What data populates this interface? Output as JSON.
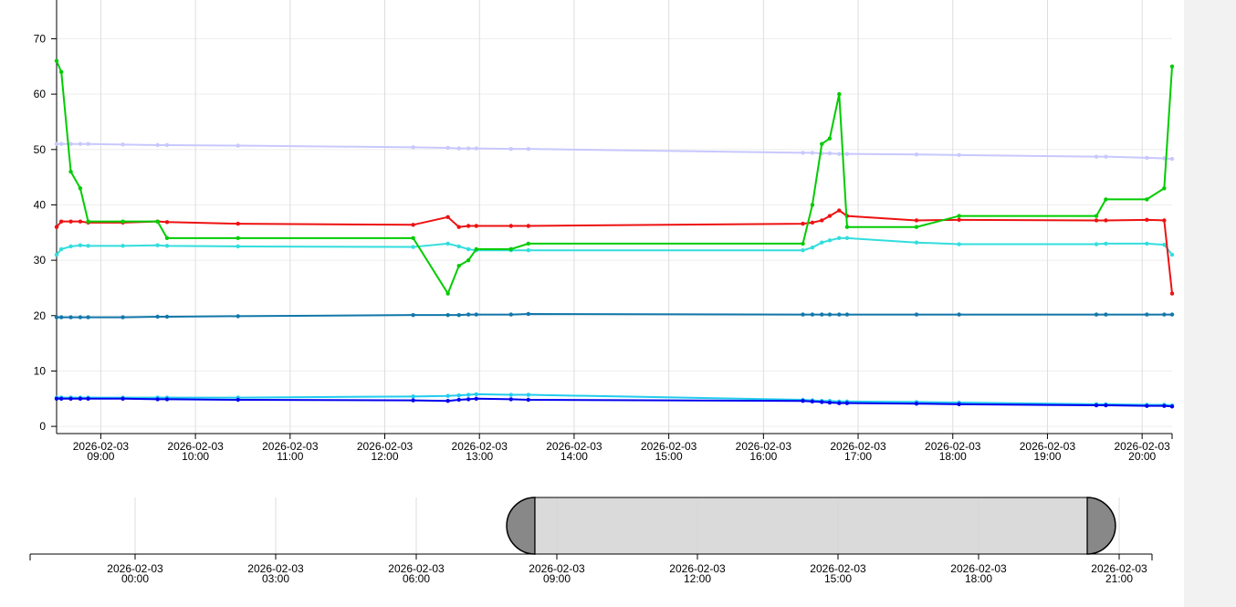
{
  "chart_data": {
    "type": "line",
    "x": [
      "2026-02-03 08:32",
      "2026-02-03 08:35",
      "2026-02-03 08:41",
      "2026-02-03 08:47",
      "2026-02-03 08:52",
      "2026-02-03 09:14",
      "2026-02-03 09:36",
      "2026-02-03 09:42",
      "2026-02-03 10:27",
      "2026-02-03 12:18",
      "2026-02-03 12:40",
      "2026-02-03 12:47",
      "2026-02-03 12:53",
      "2026-02-03 12:58",
      "2026-02-03 13:20",
      "2026-02-03 13:31",
      "2026-02-03 16:25",
      "2026-02-03 16:31",
      "2026-02-03 16:37",
      "2026-02-03 16:42",
      "2026-02-03 16:48",
      "2026-02-03 16:53",
      "2026-02-03 17:37",
      "2026-02-03 18:04",
      "2026-02-03 19:31",
      "2026-02-03 19:37",
      "2026-02-03 20:03",
      "2026-02-03 20:14",
      "2026-02-03 20:19"
    ],
    "series": [
      {
        "color": "#c8c8ff",
        "values": [
          51,
          51,
          51,
          51,
          51,
          50.9,
          50.8,
          50.8,
          50.7,
          50.4,
          50.3,
          50.2,
          50.2,
          50.2,
          50.1,
          50.1,
          49.4,
          49.4,
          49.3,
          49.3,
          49.2,
          49.2,
          49.1,
          49,
          48.7,
          48.7,
          48.5,
          48.4,
          48.3
        ]
      },
      {
        "color": "#1177aa",
        "values": [
          19.7,
          19.7,
          19.7,
          19.7,
          19.7,
          19.7,
          19.8,
          19.8,
          19.9,
          20.1,
          20.1,
          20.1,
          20.2,
          20.2,
          20.2,
          20.3,
          20.2,
          20.2,
          20.2,
          20.2,
          20.2,
          20.2,
          20.2,
          20.2,
          20.2,
          20.2,
          20.2,
          20.2,
          20.2
        ]
      },
      {
        "color": "#22ccee",
        "values": [
          5.2,
          5.2,
          5.2,
          5.2,
          5.2,
          5.2,
          5.2,
          5.2,
          5.2,
          5.4,
          5.5,
          5.6,
          5.7,
          5.8,
          5.7,
          5.7,
          4.8,
          4.7,
          4.6,
          4.6,
          4.5,
          4.5,
          4.4,
          4.3,
          4,
          4,
          3.9,
          3.9,
          3.8
        ]
      },
      {
        "color": "#0000ee",
        "values": [
          5,
          5,
          5,
          5,
          5,
          5,
          4.9,
          4.9,
          4.8,
          4.7,
          4.6,
          4.8,
          4.9,
          5,
          4.9,
          4.8,
          4.6,
          4.5,
          4.4,
          4.3,
          4.2,
          4.2,
          4.1,
          4,
          3.8,
          3.8,
          3.7,
          3.7,
          3.6
        ]
      },
      {
        "color": "#33dddd",
        "values": [
          31,
          32,
          32.5,
          32.7,
          32.6,
          32.6,
          32.7,
          32.6,
          32.5,
          32.4,
          33,
          32.5,
          32,
          31.8,
          31.8,
          31.8,
          31.8,
          32.3,
          33.2,
          33.6,
          34,
          34,
          33.2,
          32.9,
          32.9,
          33,
          33,
          32.8,
          31
        ]
      },
      {
        "color": "#ee1111",
        "values": [
          36,
          37,
          37,
          37,
          36.8,
          36.8,
          37,
          36.9,
          36.6,
          36.4,
          37.8,
          36,
          36.2,
          36.2,
          36.2,
          36.2,
          36.6,
          36.8,
          37.2,
          38,
          39,
          38,
          37.2,
          37.3,
          37.2,
          37.2,
          37.3,
          37.2,
          24
        ]
      },
      {
        "color": "#00cc00",
        "values": [
          66,
          64,
          46,
          43,
          37,
          37,
          37,
          34,
          34,
          34,
          24,
          29,
          30,
          32,
          32,
          33,
          33,
          40,
          51,
          52,
          60,
          36,
          36,
          38,
          38,
          41,
          41,
          43,
          65
        ]
      }
    ],
    "xlim": [
      "2026-02-03 08:32",
      "2026-02-03 20:19"
    ],
    "xticks": [
      {
        "value": "2026-02-03 09:00",
        "label": [
          "2026-02-03",
          "09:00"
        ]
      },
      {
        "value": "2026-02-03 10:00",
        "label": [
          "2026-02-03",
          "10:00"
        ]
      },
      {
        "value": "2026-02-03 11:00",
        "label": [
          "2026-02-03",
          "11:00"
        ]
      },
      {
        "value": "2026-02-03 12:00",
        "label": [
          "2026-02-03",
          "12:00"
        ]
      },
      {
        "value": "2026-02-03 13:00",
        "label": [
          "2026-02-03",
          "13:00"
        ]
      },
      {
        "value": "2026-02-03 14:00",
        "label": [
          "2026-02-03",
          "14:00"
        ]
      },
      {
        "value": "2026-02-03 15:00",
        "label": [
          "2026-02-03",
          "15:00"
        ]
      },
      {
        "value": "2026-02-03 16:00",
        "label": [
          "2026-02-03",
          "16:00"
        ]
      },
      {
        "value": "2026-02-03 17:00",
        "label": [
          "2026-02-03",
          "17:00"
        ]
      },
      {
        "value": "2026-02-03 18:00",
        "label": [
          "2026-02-03",
          "18:00"
        ]
      },
      {
        "value": "2026-02-03 19:00",
        "label": [
          "2026-02-03",
          "19:00"
        ]
      },
      {
        "value": "2026-02-03 20:00",
        "label": [
          "2026-02-03",
          "20:00"
        ]
      }
    ],
    "ylim": [
      -1.3,
      77
    ],
    "yticks": [
      0,
      10,
      20,
      30,
      40,
      50,
      60,
      70
    ],
    "grid": true,
    "navigator_ticks": [
      {
        "value": "2026-02-03 00:00",
        "label": [
          "2026-02-03",
          "00:00"
        ]
      },
      {
        "value": "2026-02-03 03:00",
        "label": [
          "2026-02-03",
          "03:00"
        ]
      },
      {
        "value": "2026-02-03 06:00",
        "label": [
          "2026-02-03",
          "06:00"
        ]
      },
      {
        "value": "2026-02-03 09:00",
        "label": [
          "2026-02-03",
          "09:00"
        ]
      },
      {
        "value": "2026-02-03 12:00",
        "label": [
          "2026-02-03",
          "12:00"
        ]
      },
      {
        "value": "2026-02-03 15:00",
        "label": [
          "2026-02-03",
          "15:00"
        ]
      },
      {
        "value": "2026-02-03 18:00",
        "label": [
          "2026-02-03",
          "18:00"
        ]
      },
      {
        "value": "2026-02-03 21:00",
        "label": [
          "2026-02-03",
          "21:00"
        ]
      }
    ]
  }
}
